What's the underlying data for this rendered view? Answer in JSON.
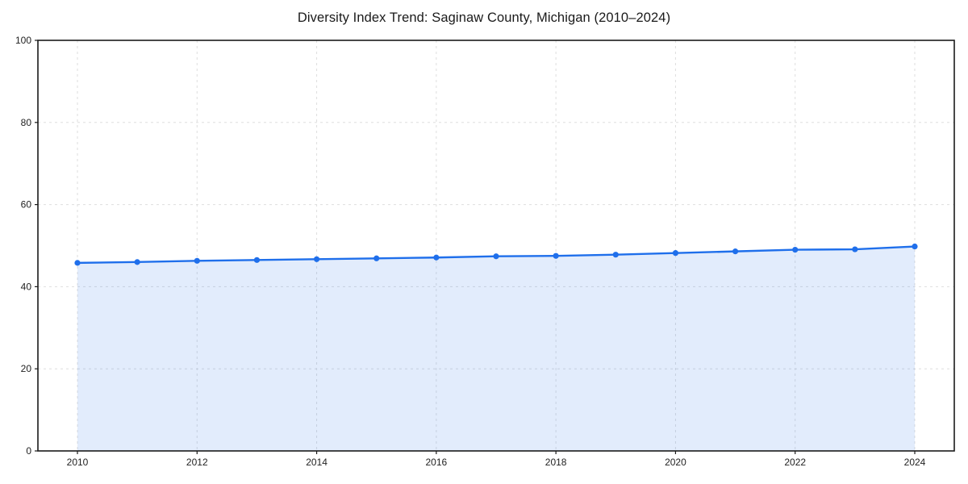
{
  "chart_data": {
    "type": "line",
    "title": "Diversity Index Trend: Saginaw County, Michigan (2010–2024)",
    "x": [
      2010,
      2011,
      2012,
      2013,
      2014,
      2015,
      2016,
      2017,
      2018,
      2019,
      2020,
      2021,
      2022,
      2023,
      2024
    ],
    "series": [
      {
        "name": "Diversity Index",
        "values": [
          45.8,
          46.0,
          46.3,
          46.5,
          46.7,
          46.9,
          47.1,
          47.4,
          47.5,
          47.8,
          48.2,
          48.6,
          49.0,
          49.1,
          49.8
        ],
        "area_fill": true,
        "markers": true
      }
    ],
    "xlabel": "",
    "ylabel": "",
    "xlim": [
      2009.35,
      2024.7
    ],
    "ylim": [
      0,
      100
    ],
    "xticks": [
      2010,
      2012,
      2014,
      2016,
      2018,
      2020,
      2022,
      2024
    ],
    "yticks": [
      0,
      20,
      40,
      60,
      80,
      100
    ],
    "grid": true,
    "grid_style": "dashed",
    "legend_position": "none",
    "colors": {
      "line": "#1f6feb",
      "area_fill": "rgba(31,111,235,0.13)",
      "grid": "#dedede",
      "spine": "#1a1a1a",
      "tick_label": "#222222",
      "title": "#1a1a1a",
      "background": "#ffffff"
    }
  }
}
